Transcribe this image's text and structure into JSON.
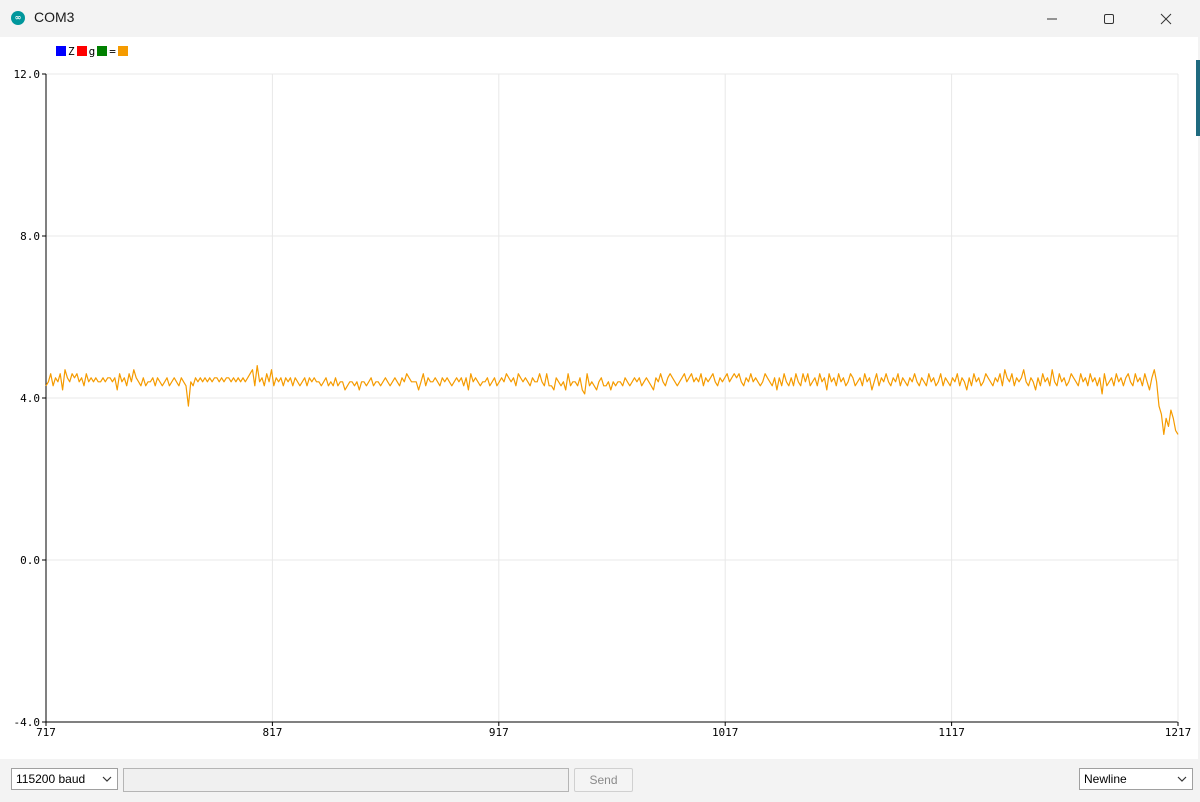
{
  "window": {
    "title": "COM3",
    "icon": "arduino-icon",
    "controls": [
      "minimize-icon",
      "maximize-icon",
      "close-icon"
    ]
  },
  "legend": {
    "items": [
      {
        "label": "Z",
        "color": "#0000ff"
      },
      {
        "label": "g",
        "color": "#ff0000"
      },
      {
        "label": "=",
        "color": "#008000"
      },
      {
        "label": "",
        "color": "#f59b00"
      }
    ]
  },
  "chart_data": {
    "type": "line",
    "ylim": [
      -4.0,
      12.0
    ],
    "yticks": [
      "12.0",
      "8.0",
      "4.0",
      "0.0",
      "-4.0"
    ],
    "xlim": [
      717,
      1217
    ],
    "xticks": [
      "717",
      "817",
      "917",
      "1017",
      "1117",
      "1217"
    ],
    "grid": true,
    "series": [
      {
        "color": "#f59b00",
        "x_start": 717,
        "x_step": 5,
        "values": [
          4.3,
          4.4,
          4.6,
          4.3,
          4.5,
          4.4,
          4.6,
          4.2,
          4.7,
          4.5,
          4.4,
          4.6,
          4.5,
          4.6,
          4.4,
          4.5,
          4.3,
          4.6,
          4.4,
          4.5,
          4.4,
          4.5,
          4.4,
          4.4,
          4.5,
          4.4,
          4.5,
          4.5,
          4.4,
          4.5,
          4.2,
          4.6,
          4.4,
          4.5,
          4.3,
          4.6,
          4.4,
          4.7,
          4.5,
          4.4,
          4.3,
          4.5,
          4.3,
          4.4,
          4.4,
          4.5,
          4.3,
          4.5,
          4.4,
          4.3,
          4.4,
          4.5,
          4.3,
          4.4,
          4.5,
          4.4,
          4.3,
          4.5,
          4.4,
          4.3,
          3.8,
          4.4,
          4.3,
          4.5,
          4.4,
          4.5,
          4.4,
          4.5,
          4.4,
          4.5,
          4.4,
          4.5,
          4.5,
          4.4,
          4.5,
          4.4,
          4.5,
          4.5,
          4.4,
          4.5,
          4.4,
          4.5,
          4.4,
          4.5,
          4.4,
          4.5,
          4.6,
          4.7,
          4.3,
          4.8,
          4.4,
          4.5,
          4.3,
          4.6,
          4.4,
          4.7,
          4.3,
          4.5,
          4.4,
          4.5,
          4.3,
          4.5,
          4.4,
          4.5,
          4.3,
          4.5,
          4.4,
          4.3,
          4.4,
          4.5,
          4.3,
          4.5,
          4.4,
          4.5,
          4.4,
          4.4,
          4.3,
          4.4,
          4.5,
          4.3,
          4.4,
          4.3,
          4.5,
          4.3,
          4.4,
          4.4,
          4.2,
          4.3,
          4.4,
          4.4,
          4.3,
          4.4,
          4.2,
          4.4,
          4.4,
          4.3,
          4.4,
          4.5,
          4.3,
          4.4,
          4.4,
          4.3,
          4.4,
          4.5,
          4.4,
          4.3,
          4.4,
          4.5,
          4.4,
          4.3,
          4.5,
          4.4,
          4.6,
          4.5,
          4.4,
          4.4,
          4.4,
          4.2,
          4.4,
          4.6,
          4.3,
          4.5,
          4.4,
          4.4,
          4.5,
          4.4,
          4.3,
          4.5,
          4.4,
          4.5,
          4.4,
          4.3,
          4.4,
          4.5,
          4.4,
          4.5,
          4.3,
          4.5,
          4.2,
          4.6,
          4.4,
          4.5,
          4.4,
          4.3,
          4.4,
          4.4,
          4.5,
          4.3,
          4.4,
          4.5,
          4.3,
          4.4,
          4.5,
          4.4,
          4.6,
          4.5,
          4.4,
          4.5,
          4.3,
          4.6,
          4.5,
          4.4,
          4.5,
          4.4,
          4.3,
          4.5,
          4.4,
          4.4,
          4.6,
          4.4,
          4.3,
          4.6,
          4.3,
          4.3,
          4.2,
          4.5,
          4.4,
          4.3,
          4.4,
          4.2,
          4.6,
          4.3,
          4.4,
          4.4,
          4.3,
          4.5,
          4.2,
          4.1,
          4.6,
          4.3,
          4.4,
          4.3,
          4.2,
          4.4,
          4.5,
          4.3,
          4.3,
          4.4,
          4.2,
          4.4,
          4.3,
          4.4,
          4.4,
          4.3,
          4.5,
          4.4,
          4.3,
          4.4,
          4.5,
          4.4,
          4.5,
          4.3,
          4.4,
          4.5,
          4.4,
          4.3,
          4.2,
          4.5,
          4.4,
          4.6,
          4.4,
          4.3,
          4.5,
          4.6,
          4.5,
          4.4,
          4.3,
          4.4,
          4.5,
          4.6,
          4.4,
          4.5,
          4.6,
          4.4,
          4.5,
          4.4,
          4.6,
          4.3,
          4.5,
          4.4,
          4.5,
          4.6,
          4.4,
          4.3,
          4.5,
          4.4,
          4.5,
          4.6,
          4.4,
          4.5,
          4.6,
          4.5,
          4.6,
          4.4,
          4.3,
          4.5,
          4.4,
          4.6,
          4.4,
          4.5,
          4.4,
          4.3,
          4.4,
          4.6,
          4.5,
          4.4,
          4.3,
          4.5,
          4.2,
          4.5,
          4.3,
          4.6,
          4.4,
          4.3,
          4.5,
          4.3,
          4.6,
          4.4,
          4.3,
          4.6,
          4.4,
          4.6,
          4.3,
          4.4,
          4.5,
          4.3,
          4.6,
          4.4,
          4.5,
          4.2,
          4.6,
          4.4,
          4.5,
          4.3,
          4.6,
          4.4,
          4.5,
          4.3,
          4.4,
          4.6,
          4.5,
          4.3,
          4.4,
          4.5,
          4.3,
          4.6,
          4.4,
          4.5,
          4.2,
          4.4,
          4.6,
          4.3,
          4.5,
          4.4,
          4.6,
          4.4,
          4.3,
          4.5,
          4.4,
          4.6,
          4.3,
          4.5,
          4.4,
          4.3,
          4.5,
          4.4,
          4.6,
          4.4,
          4.3,
          4.5,
          4.4,
          4.3,
          4.6,
          4.4,
          4.5,
          4.3,
          4.4,
          4.6,
          4.3,
          4.5,
          4.4,
          4.3,
          4.5,
          4.4,
          4.6,
          4.3,
          4.5,
          4.4,
          4.2,
          4.5,
          4.3,
          4.6,
          4.4,
          4.5,
          4.3,
          4.4,
          4.6,
          4.5,
          4.4,
          4.3,
          4.5,
          4.4,
          4.6,
          4.3,
          4.7,
          4.5,
          4.4,
          4.6,
          4.3,
          4.5,
          4.4,
          4.5,
          4.7,
          4.4,
          4.3,
          4.5,
          4.4,
          4.2,
          4.5,
          4.3,
          4.6,
          4.4,
          4.5,
          4.3,
          4.7,
          4.4,
          4.3,
          4.6,
          4.4,
          4.5,
          4.3,
          4.4,
          4.6,
          4.5,
          4.4,
          4.3,
          4.6,
          4.4,
          4.5,
          4.3,
          4.6,
          4.4,
          4.5,
          4.3,
          4.5,
          4.1,
          4.6,
          4.3,
          4.4,
          4.5,
          4.3,
          4.6,
          4.4,
          4.5,
          4.3,
          4.5,
          4.6,
          4.4,
          4.3,
          4.6,
          4.4,
          4.5,
          4.3,
          4.6,
          4.4,
          4.2,
          4.5,
          4.7,
          4.4,
          3.8,
          3.6,
          3.1,
          3.5,
          3.3,
          3.7,
          3.5,
          3.2,
          3.1
        ]
      }
    ]
  },
  "footer": {
    "baud": "115200 baud",
    "send_label": "Send",
    "send_value": "",
    "line_ending": "Newline"
  }
}
